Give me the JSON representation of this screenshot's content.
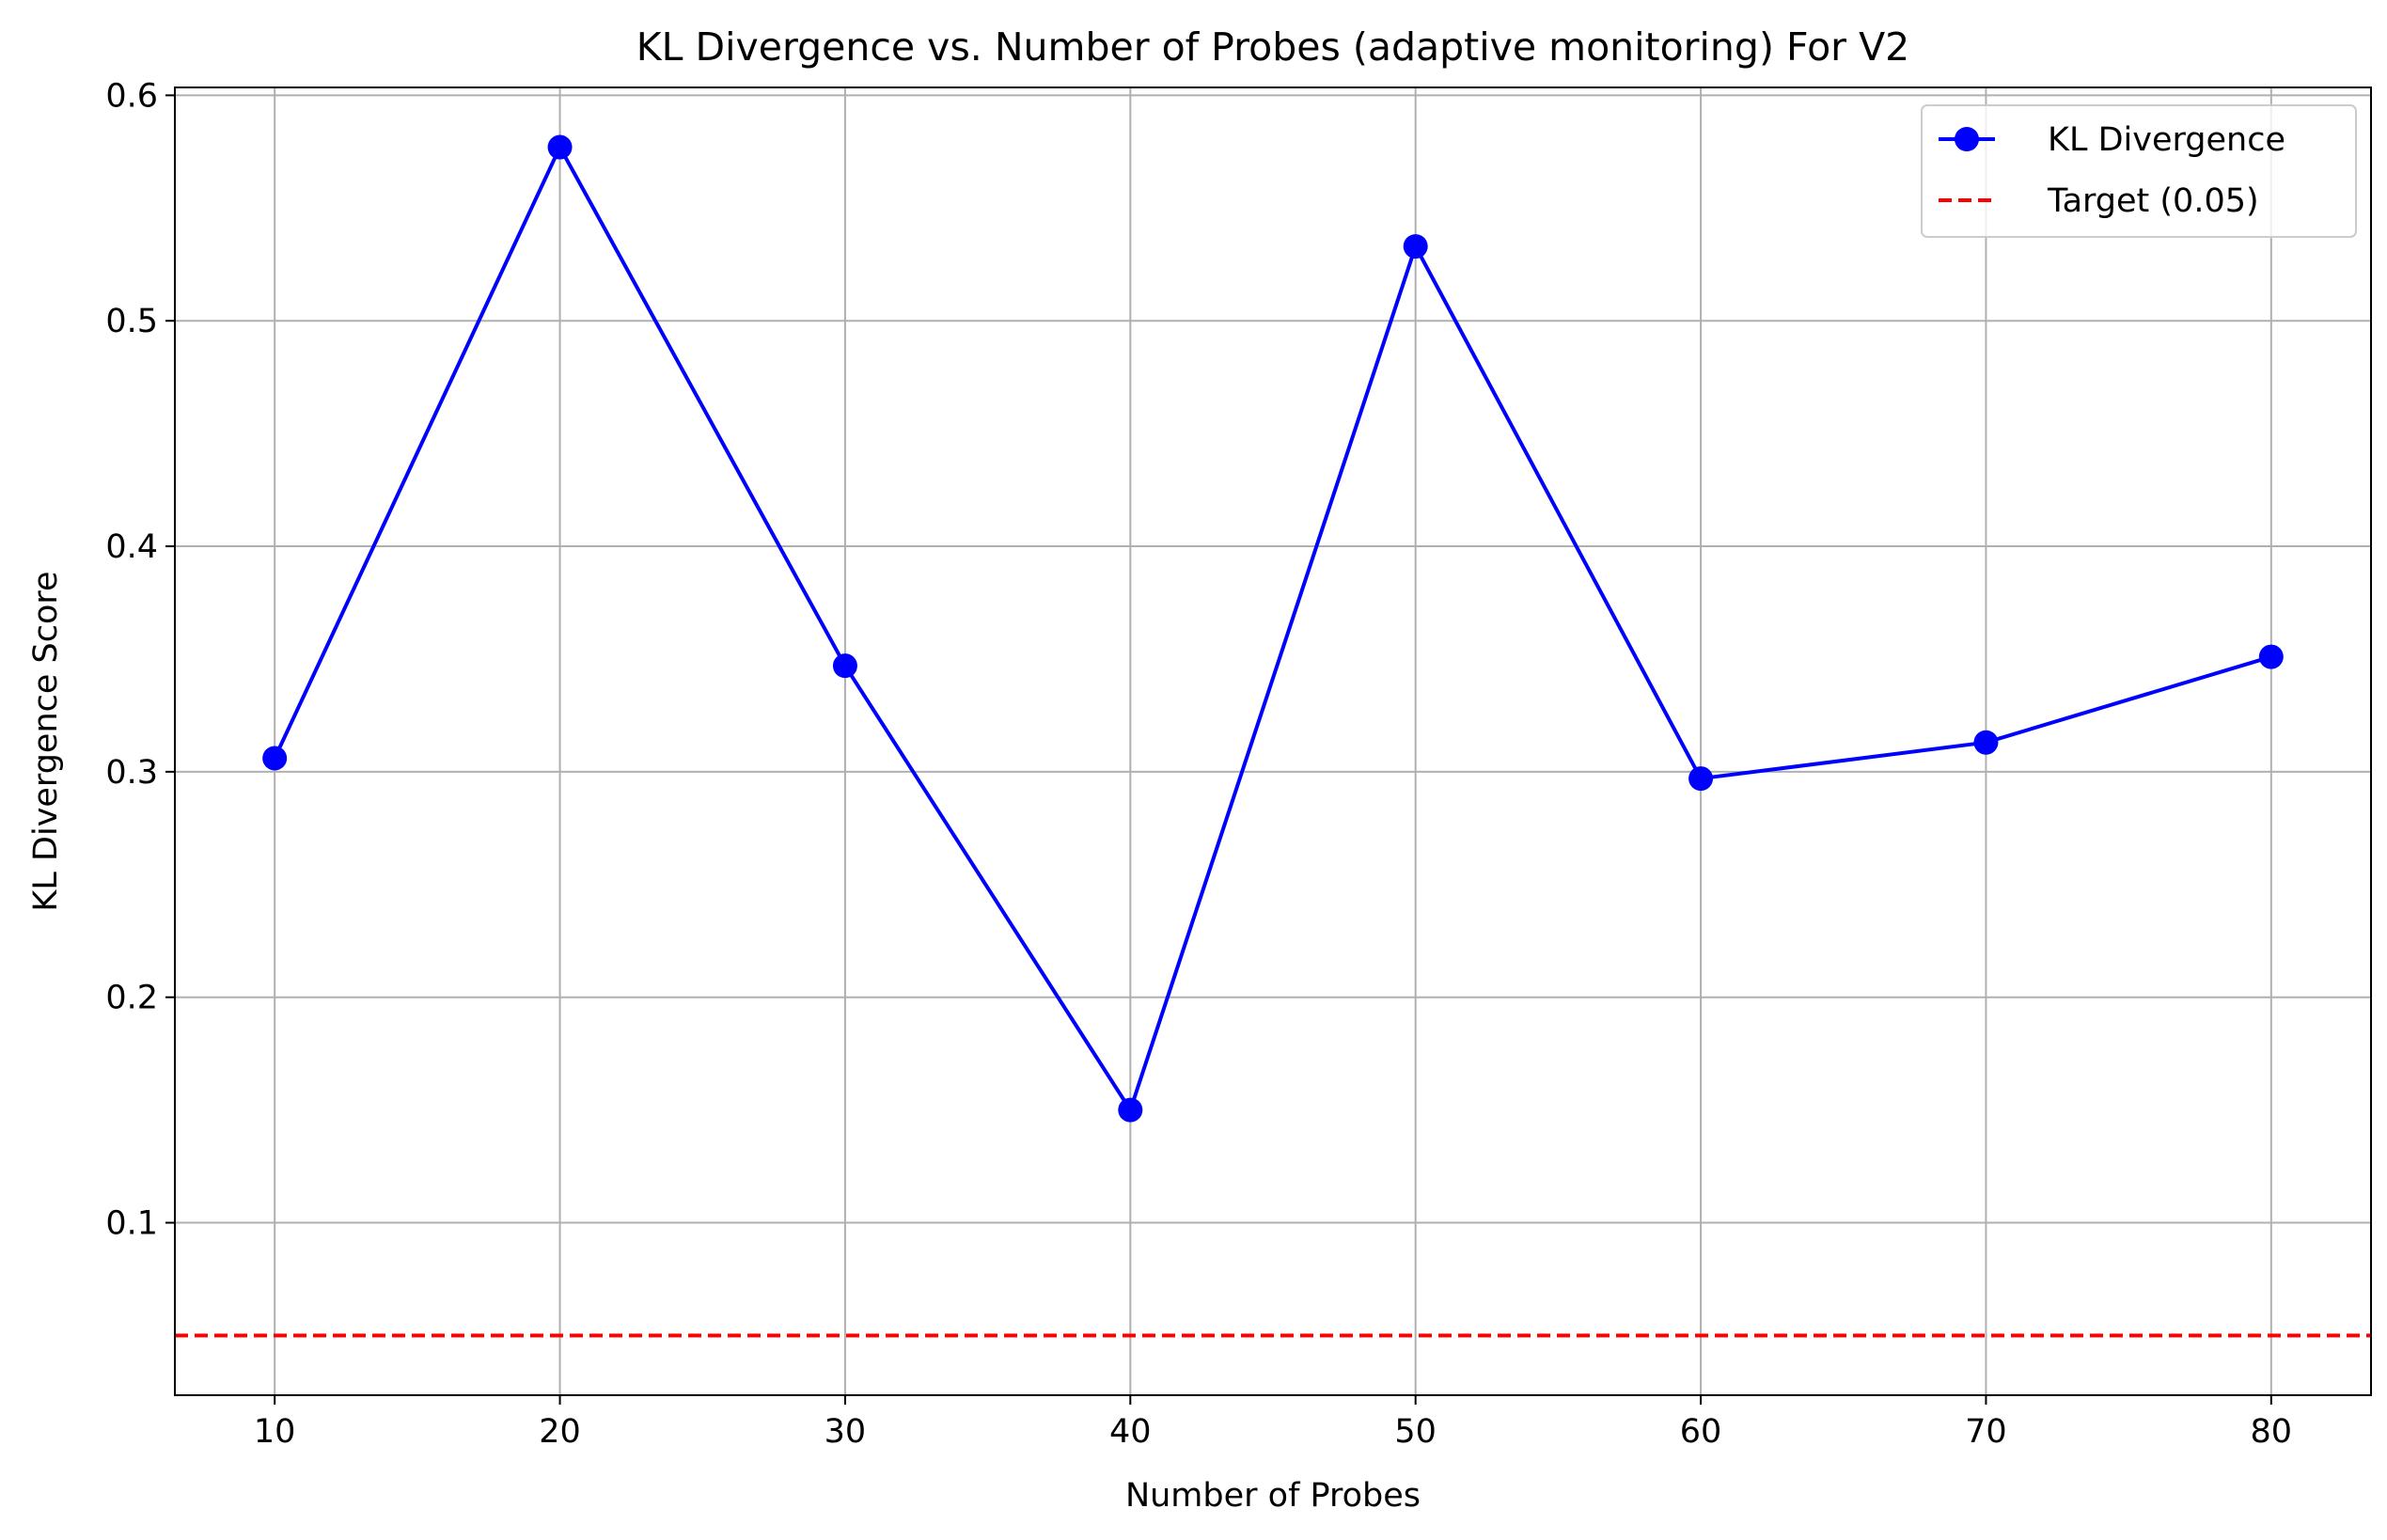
{
  "chart_data": {
    "type": "line",
    "title": "KL Divergence vs. Number of Probes (adaptive monitoring) For V2",
    "xlabel": "Number of Probes",
    "ylabel": "KL Divergence Score",
    "x": [
      10,
      20,
      30,
      40,
      50,
      60,
      70,
      80
    ],
    "xticks": [
      10,
      20,
      30,
      40,
      50,
      60,
      70,
      80
    ],
    "yticks": [
      0.1,
      0.2,
      0.3,
      0.4,
      0.5,
      0.6
    ],
    "xlim": [
      6.5,
      83.5
    ],
    "ylim": [
      0.0235,
      0.6035
    ],
    "grid": true,
    "legend_position": "top-right",
    "series": [
      {
        "name": "KL Divergence",
        "values": [
          0.306,
          0.577,
          0.347,
          0.15,
          0.533,
          0.297,
          0.313,
          0.351
        ],
        "color": "#0000ff",
        "style": "solid",
        "marker": "circle"
      }
    ],
    "reference_lines": [
      {
        "name": "Target (0.05)",
        "y": 0.05,
        "color": "#ff0000",
        "style": "dashed"
      }
    ]
  }
}
